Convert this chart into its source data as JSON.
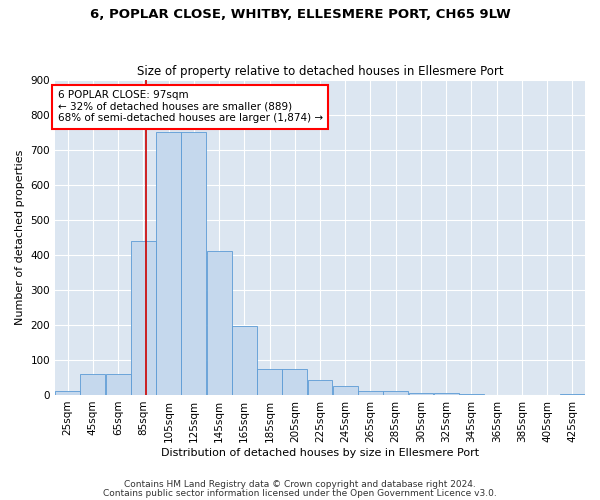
{
  "title1": "6, POPLAR CLOSE, WHITBY, ELLESMERE PORT, CH65 9LW",
  "title2": "Size of property relative to detached houses in Ellesmere Port",
  "xlabel": "Distribution of detached houses by size in Ellesmere Port",
  "ylabel": "Number of detached properties",
  "footnote1": "Contains HM Land Registry data © Crown copyright and database right 2024.",
  "footnote2": "Contains public sector information licensed under the Open Government Licence v3.0.",
  "bar_color": "#c5d8ed",
  "bar_edge_color": "#5b9bd5",
  "background_color": "#dce6f1",
  "grid_color": "#ffffff",
  "annotation_text": "6 POPLAR CLOSE: 97sqm\n← 32% of detached houses are smaller (889)\n68% of semi-detached houses are larger (1,874) →",
  "property_size": 97,
  "property_line_color": "#cc0000",
  "bin_starts": [
    25,
    45,
    65,
    85,
    105,
    125,
    145,
    165,
    185,
    205,
    225,
    245,
    265,
    285,
    305,
    325,
    345,
    365,
    385,
    405,
    425
  ],
  "bin_width": 20,
  "bar_heights": [
    10,
    60,
    60,
    440,
    750,
    750,
    410,
    197,
    75,
    75,
    43,
    25,
    10,
    10,
    5,
    5,
    2,
    0,
    0,
    0,
    4
  ],
  "ylim": [
    0,
    900
  ],
  "yticks": [
    0,
    100,
    200,
    300,
    400,
    500,
    600,
    700,
    800,
    900
  ],
  "title1_fontsize": 9.5,
  "title2_fontsize": 8.5,
  "xlabel_fontsize": 8,
  "ylabel_fontsize": 8,
  "tick_fontsize": 7.5,
  "annotation_fontsize": 7.5,
  "footnote_fontsize": 6.5
}
